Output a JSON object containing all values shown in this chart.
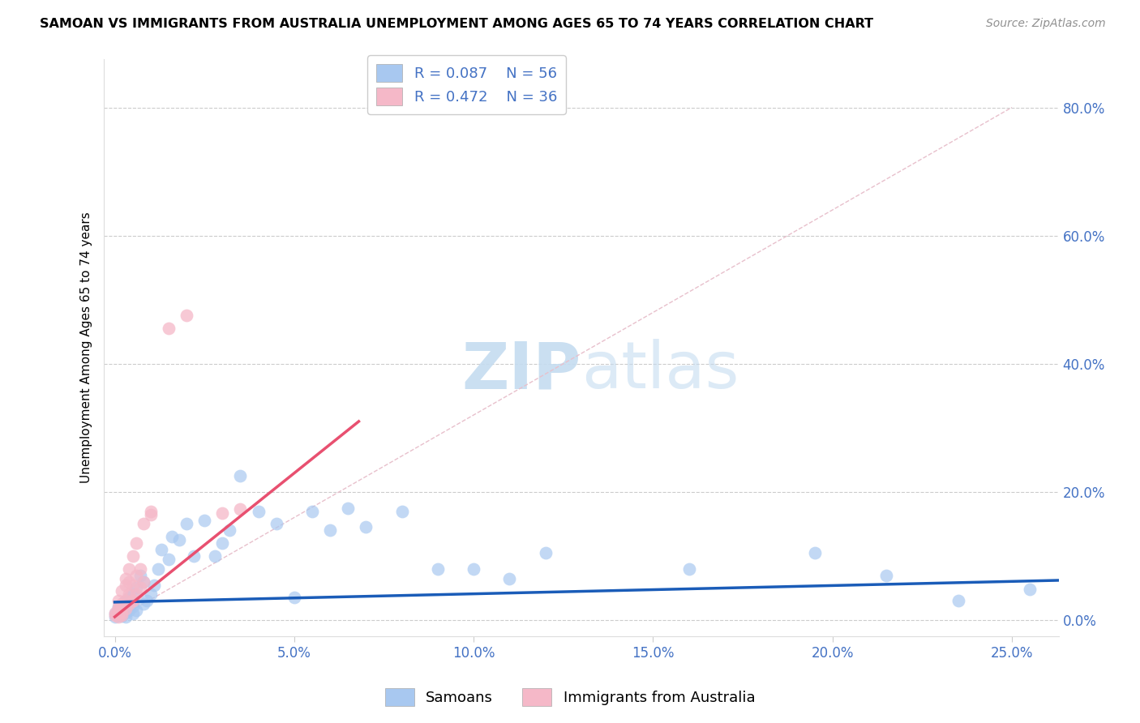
{
  "title": "SAMOAN VS IMMIGRANTS FROM AUSTRALIA UNEMPLOYMENT AMONG AGES 65 TO 74 YEARS CORRELATION CHART",
  "source": "Source: ZipAtlas.com",
  "xlabel_ticks": [
    0.0,
    0.05,
    0.1,
    0.15,
    0.2,
    0.25
  ],
  "ylabel_ticks": [
    0.0,
    0.2,
    0.4,
    0.6,
    0.8
  ],
  "xlim": [
    -0.003,
    0.263
  ],
  "ylim": [
    -0.025,
    0.875
  ],
  "legend_label_blue": "Samoans",
  "legend_label_pink": "Immigrants from Australia",
  "R_blue": 0.087,
  "N_blue": 56,
  "R_pink": 0.472,
  "N_pink": 36,
  "blue_color": "#A8C8F0",
  "pink_color": "#F5B8C8",
  "line_blue": "#1A5CB8",
  "line_pink": "#E85070",
  "diag_color": "#E8C0CC",
  "blue_line_x0": 0.0,
  "blue_line_y0": 0.028,
  "blue_line_x1": 0.263,
  "blue_line_y1": 0.062,
  "pink_line_x0": 0.0,
  "pink_line_y0": 0.005,
  "pink_line_x1": 0.068,
  "pink_line_y1": 0.31,
  "blue_scatter_x": [
    0.0,
    0.0,
    0.001,
    0.001,
    0.001,
    0.002,
    0.002,
    0.002,
    0.002,
    0.003,
    0.003,
    0.003,
    0.003,
    0.004,
    0.004,
    0.004,
    0.005,
    0.005,
    0.005,
    0.006,
    0.006,
    0.007,
    0.008,
    0.008,
    0.009,
    0.01,
    0.011,
    0.012,
    0.013,
    0.015,
    0.016,
    0.018,
    0.02,
    0.022,
    0.025,
    0.028,
    0.03,
    0.032,
    0.035,
    0.04,
    0.045,
    0.05,
    0.055,
    0.06,
    0.065,
    0.07,
    0.08,
    0.09,
    0.1,
    0.11,
    0.12,
    0.16,
    0.195,
    0.215,
    0.235,
    0.255
  ],
  "blue_scatter_y": [
    0.005,
    0.01,
    0.008,
    0.015,
    0.02,
    0.006,
    0.01,
    0.018,
    0.025,
    0.012,
    0.02,
    0.03,
    0.005,
    0.015,
    0.025,
    0.035,
    0.01,
    0.022,
    0.04,
    0.015,
    0.05,
    0.07,
    0.025,
    0.06,
    0.03,
    0.04,
    0.055,
    0.08,
    0.11,
    0.095,
    0.13,
    0.125,
    0.15,
    0.1,
    0.155,
    0.1,
    0.12,
    0.14,
    0.225,
    0.17,
    0.15,
    0.035,
    0.17,
    0.14,
    0.175,
    0.145,
    0.17,
    0.08,
    0.08,
    0.065,
    0.105,
    0.08,
    0.105,
    0.07,
    0.03,
    0.048
  ],
  "pink_scatter_x": [
    0.0,
    0.0,
    0.001,
    0.001,
    0.001,
    0.001,
    0.001,
    0.002,
    0.002,
    0.002,
    0.002,
    0.002,
    0.003,
    0.003,
    0.003,
    0.003,
    0.004,
    0.004,
    0.004,
    0.004,
    0.005,
    0.005,
    0.005,
    0.006,
    0.006,
    0.006,
    0.007,
    0.007,
    0.008,
    0.008,
    0.03,
    0.035,
    0.01,
    0.01,
    0.015,
    0.02
  ],
  "pink_scatter_y": [
    0.008,
    0.012,
    0.01,
    0.015,
    0.02,
    0.03,
    0.005,
    0.012,
    0.02,
    0.025,
    0.045,
    0.008,
    0.018,
    0.03,
    0.055,
    0.065,
    0.025,
    0.04,
    0.06,
    0.08,
    0.03,
    0.055,
    0.1,
    0.04,
    0.07,
    0.12,
    0.05,
    0.08,
    0.06,
    0.15,
    0.167,
    0.173,
    0.165,
    0.17,
    0.455,
    0.475
  ]
}
